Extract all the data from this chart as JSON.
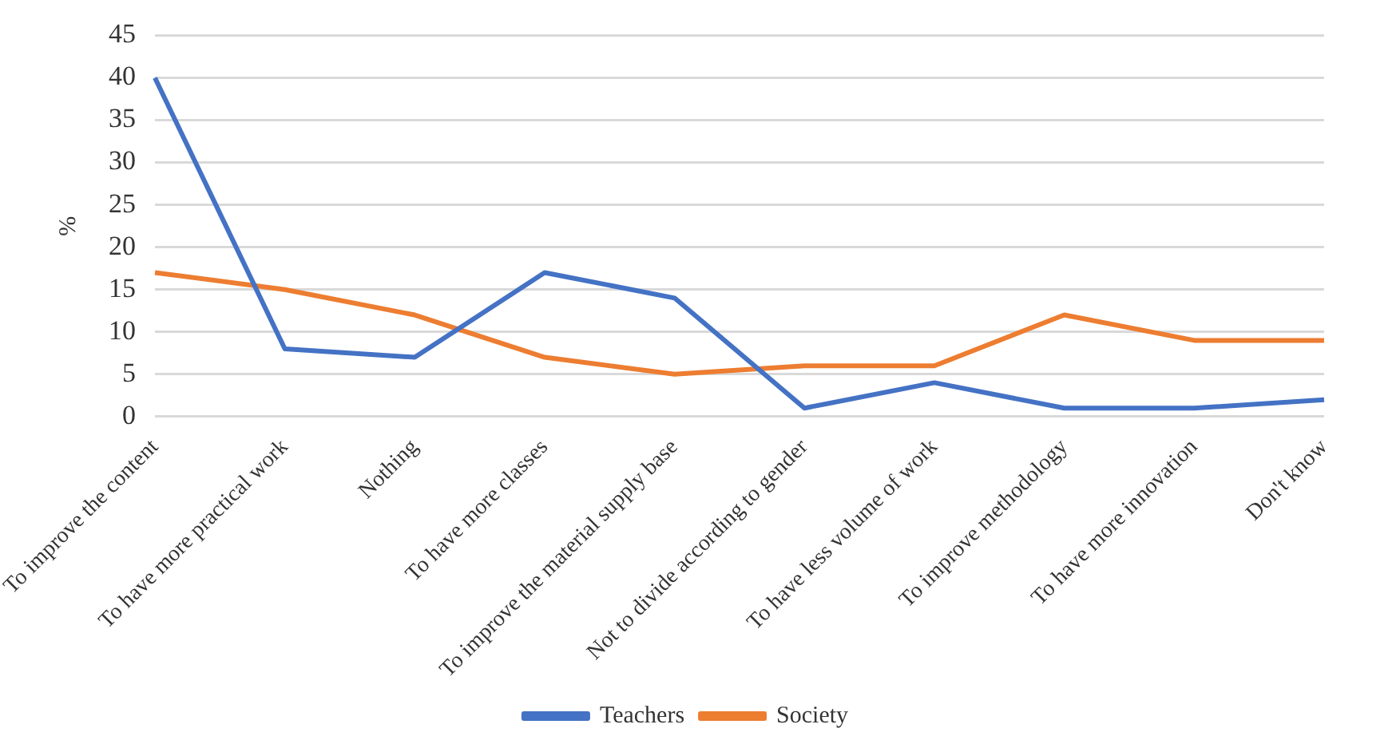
{
  "chart_data": {
    "type": "line",
    "ylabel": "%",
    "categories": [
      "To improve the content",
      "To have more practical work",
      "Nothing",
      "To have more classes",
      "To improve the material supply base",
      "Not to divide according to gender",
      "To have less volume of work",
      "To improve methodology",
      "To have more innovation",
      "Don't know"
    ],
    "series": [
      {
        "name": "Teachers",
        "color": "#4472c4",
        "values": [
          40,
          8,
          7,
          17,
          14,
          1,
          4,
          1,
          1,
          2
        ]
      },
      {
        "name": "Society",
        "color": "#ed7d31",
        "values": [
          17,
          15,
          12,
          7,
          5,
          6,
          6,
          12,
          9,
          9
        ]
      }
    ],
    "ylim": [
      0,
      45
    ],
    "yticks": [
      0,
      5,
      10,
      15,
      20,
      25,
      30,
      35,
      40,
      45
    ],
    "grid": "y",
    "legend": "bottom",
    "marker": "none",
    "line_style": "solid"
  }
}
